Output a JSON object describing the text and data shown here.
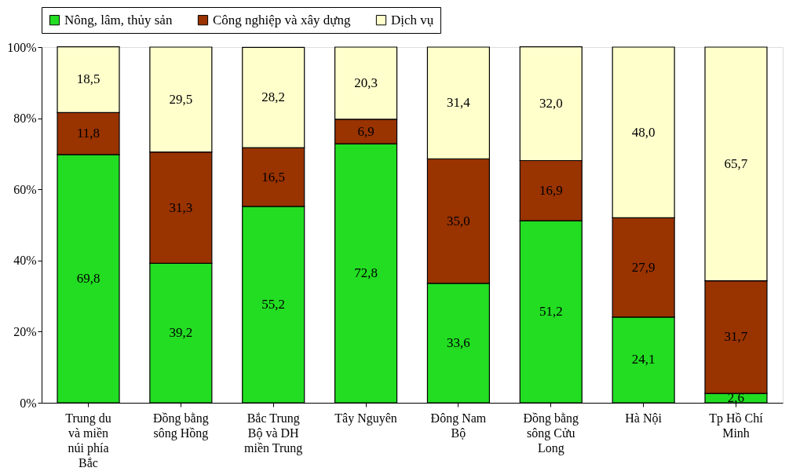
{
  "chart_data": {
    "type": "bar",
    "stacked": true,
    "legend": "top",
    "grid": false,
    "categories": [
      "Trung du và miền núi phía Bắc",
      "Đồng bằng sông Hồng",
      "Bắc Trung Bộ và DH miền Trung",
      "Tây Nguyên",
      "Đông Nam Bộ",
      "Đồng bằng sông Cửu Long",
      "Hà Nội",
      "Tp Hồ Chí Minh"
    ],
    "ylim": [
      0,
      100
    ],
    "yticks": [
      {
        "value": 0,
        "label": "0%"
      },
      {
        "value": 20,
        "label": "20%"
      },
      {
        "value": 40,
        "label": "40%"
      },
      {
        "value": 60,
        "label": "60%"
      },
      {
        "value": 80,
        "label": "80%"
      },
      {
        "value": 100,
        "label": "100%"
      }
    ],
    "series": [
      {
        "name": "Nông, lâm, thủy sản",
        "color": "#22dd22",
        "values": [
          69.8,
          39.2,
          55.2,
          72.8,
          33.6,
          51.2,
          24.1,
          2.6
        ],
        "value_labels": [
          "69,8",
          "39,2",
          "55,2",
          "72,8",
          "33,6",
          "51,2",
          "24,1",
          "2,6"
        ]
      },
      {
        "name": "Công nghiệp và xây dựng",
        "color": "#993300",
        "values": [
          11.8,
          31.3,
          16.5,
          6.9,
          35.0,
          16.9,
          27.9,
          31.7
        ],
        "value_labels": [
          "11,8",
          "31,3",
          "16,5",
          "6,9",
          "35,0",
          "16,9",
          "27,9",
          "31,7"
        ]
      },
      {
        "name": "Dịch vụ",
        "color": "#ffffcc",
        "values": [
          18.5,
          29.5,
          28.2,
          20.3,
          31.4,
          32.0,
          48.0,
          65.7
        ],
        "value_labels": [
          "18,5",
          "29,5",
          "28,2",
          "20,3",
          "31,4",
          "32,0",
          "48,0",
          "65,7"
        ]
      }
    ]
  }
}
